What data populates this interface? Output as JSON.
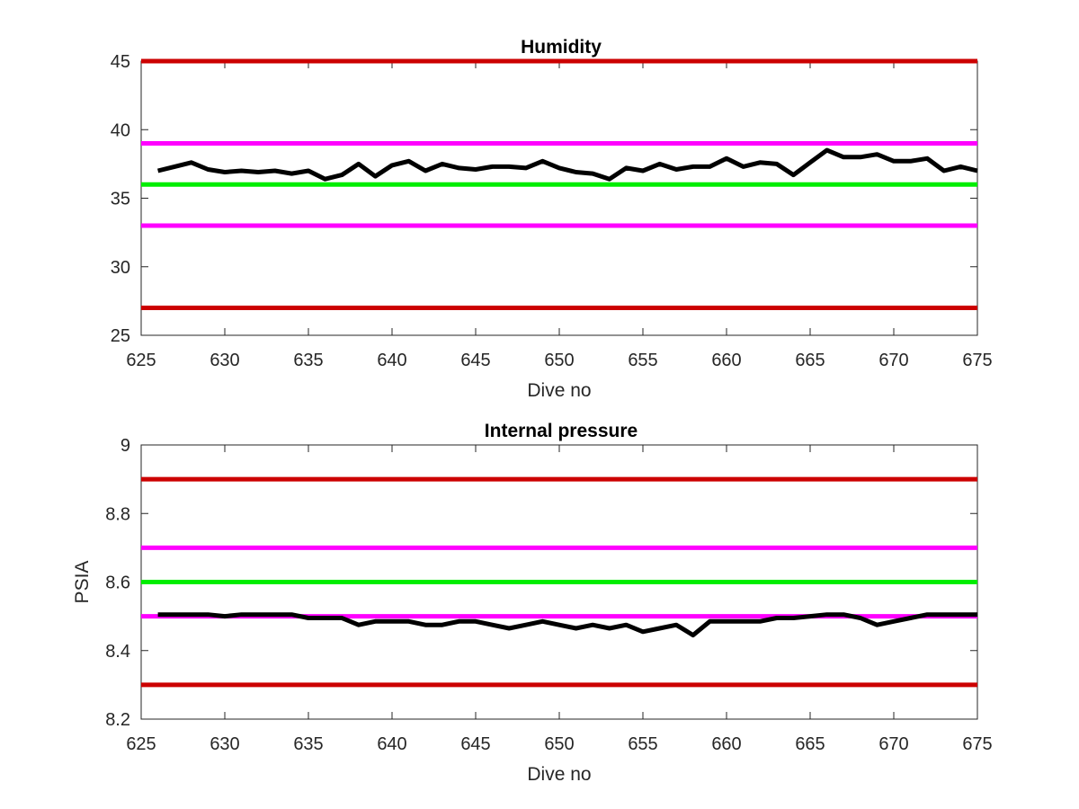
{
  "chart_data": [
    {
      "type": "line",
      "title": "Humidity",
      "xlabel": "Dive no",
      "ylabel": "",
      "xlim": [
        625,
        675
      ],
      "ylim": [
        25,
        45
      ],
      "xticks": [
        625,
        630,
        635,
        640,
        645,
        650,
        655,
        660,
        665,
        670,
        675
      ],
      "yticks": [
        25,
        30,
        35,
        40,
        45
      ],
      "xtick_labels": [
        "625",
        "630",
        "635",
        "640",
        "645",
        "650",
        "655",
        "660",
        "665",
        "670",
        "675"
      ],
      "ytick_labels": [
        "25",
        "30",
        "35",
        "40",
        "45"
      ],
      "grid": false,
      "reference_lines": [
        {
          "y": 45,
          "color": "#cc0000"
        },
        {
          "y": 39,
          "color": "#ff00ff"
        },
        {
          "y": 36,
          "color": "#00ee00"
        },
        {
          "y": 33,
          "color": "#ff00ff"
        },
        {
          "y": 27,
          "color": "#cc0000"
        }
      ],
      "series": [
        {
          "color": "#000000",
          "x": [
            626,
            627,
            628,
            629,
            630,
            631,
            632,
            633,
            634,
            635,
            636,
            637,
            638,
            639,
            640,
            641,
            642,
            643,
            644,
            645,
            646,
            647,
            648,
            649,
            650,
            651,
            652,
            653,
            654,
            655,
            656,
            657,
            658,
            659,
            660,
            661,
            662,
            663,
            664,
            665,
            666,
            667,
            668,
            669,
            670,
            671,
            672,
            673,
            674,
            675
          ],
          "y": [
            37.0,
            37.3,
            37.6,
            37.1,
            36.9,
            37.0,
            36.9,
            37.0,
            36.8,
            37.0,
            36.4,
            36.7,
            37.5,
            36.6,
            37.4,
            37.7,
            37.0,
            37.5,
            37.2,
            37.1,
            37.3,
            37.3,
            37.2,
            37.7,
            37.2,
            36.9,
            36.8,
            36.4,
            37.2,
            37.0,
            37.5,
            37.1,
            37.3,
            37.3,
            37.9,
            37.3,
            37.6,
            37.5,
            36.7,
            37.6,
            38.5,
            38.0,
            38.0,
            38.2,
            37.7,
            37.7,
            37.9,
            37.0,
            37.3,
            37.0
          ]
        }
      ]
    },
    {
      "type": "line",
      "title": "Internal pressure",
      "xlabel": "Dive no",
      "ylabel": "PSIA",
      "xlim": [
        625,
        675
      ],
      "ylim": [
        8.2,
        9
      ],
      "xticks": [
        625,
        630,
        635,
        640,
        645,
        650,
        655,
        660,
        665,
        670,
        675
      ],
      "yticks": [
        8.2,
        8.4,
        8.6,
        8.8,
        9
      ],
      "xtick_labels": [
        "625",
        "630",
        "635",
        "640",
        "645",
        "650",
        "655",
        "660",
        "665",
        "670",
        "675"
      ],
      "ytick_labels": [
        "8.2",
        "8.4",
        "8.6",
        "8.8",
        "9"
      ],
      "grid": false,
      "reference_lines": [
        {
          "y": 8.9,
          "color": "#cc0000"
        },
        {
          "y": 8.7,
          "color": "#ff00ff"
        },
        {
          "y": 8.6,
          "color": "#00ee00"
        },
        {
          "y": 8.5,
          "color": "#ff00ff"
        },
        {
          "y": 8.3,
          "color": "#cc0000"
        }
      ],
      "series": [
        {
          "color": "#000000",
          "x": [
            626,
            627,
            628,
            629,
            630,
            631,
            632,
            633,
            634,
            635,
            636,
            637,
            638,
            639,
            640,
            641,
            642,
            643,
            644,
            645,
            646,
            647,
            648,
            649,
            650,
            651,
            652,
            653,
            654,
            655,
            656,
            657,
            658,
            659,
            660,
            661,
            662,
            663,
            664,
            665,
            666,
            667,
            668,
            669,
            670,
            671,
            672,
            673,
            674,
            675
          ],
          "y": [
            8.505,
            8.505,
            8.505,
            8.505,
            8.5,
            8.505,
            8.505,
            8.505,
            8.505,
            8.495,
            8.495,
            8.495,
            8.475,
            8.485,
            8.485,
            8.485,
            8.475,
            8.475,
            8.485,
            8.485,
            8.475,
            8.465,
            8.475,
            8.485,
            8.475,
            8.465,
            8.475,
            8.465,
            8.475,
            8.455,
            8.465,
            8.475,
            8.445,
            8.485,
            8.485,
            8.485,
            8.485,
            8.495,
            8.495,
            8.5,
            8.505,
            8.505,
            8.495,
            8.475,
            8.485,
            8.495,
            8.505,
            8.505,
            8.505,
            8.505
          ]
        }
      ]
    }
  ]
}
